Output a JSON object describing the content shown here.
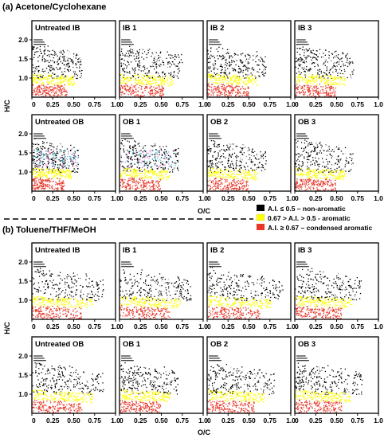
{
  "sections": [
    {
      "title": "(a) Acetone/Cyclohexane"
    },
    {
      "title": "(b) Toluene/THF/MeOH"
    }
  ],
  "axes": {
    "xlabel": "O/C",
    "ylabel": "H/C",
    "xticks": [
      "0",
      "0.25",
      "0.50",
      "0.75",
      "1.0"
    ],
    "yticks": [
      "1.0",
      "1.5",
      "2.0"
    ],
    "yticks_full": [
      "0.5",
      "1.0",
      "1.5",
      "2.0",
      "2.5"
    ]
  },
  "legend": [
    {
      "label": "A.I. ≤ 0.5 – non-aromatic",
      "color": "#000000"
    },
    {
      "label": "0.67 > A.I. > 0.5 - aromatic",
      "color": "#ffff00"
    },
    {
      "label": "A.I. ≥ 0.67 – condensed aromatic",
      "color": "#e8372a"
    }
  ],
  "chart_data": {
    "type": "scatter",
    "description_free": true,
    "x_range": [
      0,
      1.0
    ],
    "y_range": [
      0.5,
      2.5
    ],
    "series_classes": [
      {
        "name": "A.I. ≤ 0.5 – non-aromatic",
        "color": "#000000"
      },
      {
        "name": "0.67 > A.I. > 0.5 - aromatic",
        "color": "#ffff00"
      },
      {
        "name": "A.I. ≥ 0.67 – condensed aromatic",
        "color": "#e8372a"
      }
    ],
    "panels": [
      {
        "title": "Untreated IB",
        "section": 0,
        "spread": 0.6,
        "cyan": false,
        "pink": false
      },
      {
        "title": "IB 1",
        "section": 0,
        "spread": 0.75,
        "cyan": false,
        "pink": false
      },
      {
        "title": "IB 2",
        "section": 0,
        "spread": 0.7,
        "cyan": false,
        "pink": false
      },
      {
        "title": "IB 3",
        "section": 0,
        "spread": 0.7,
        "cyan": false,
        "pink": false
      },
      {
        "title": "Untreated OB",
        "section": 0,
        "spread": 0.55,
        "cyan": true,
        "pink": true
      },
      {
        "title": "OB 1",
        "section": 0,
        "spread": 0.7,
        "cyan": true,
        "pink": true
      },
      {
        "title": "OB 2",
        "section": 0,
        "spread": 0.7,
        "cyan": false,
        "pink": false
      },
      {
        "title": "OB 3",
        "section": 0,
        "spread": 0.7,
        "cyan": false,
        "pink": false
      },
      {
        "title": "Untreated IB",
        "section": 1,
        "spread": 0.85,
        "cyan": false,
        "pink": false
      },
      {
        "title": "IB 1",
        "section": 1,
        "spread": 0.85,
        "cyan": false,
        "pink": false
      },
      {
        "title": "IB 2",
        "section": 1,
        "spread": 0.9,
        "cyan": false,
        "pink": false
      },
      {
        "title": "IB 3",
        "section": 1,
        "spread": 0.8,
        "cyan": false,
        "pink": false
      },
      {
        "title": "Untreated OB",
        "section": 1,
        "spread": 0.85,
        "cyan": false,
        "pink": false
      },
      {
        "title": "OB 1",
        "section": 1,
        "spread": 0.7,
        "cyan": false,
        "pink": false
      },
      {
        "title": "OB 2",
        "section": 1,
        "spread": 0.8,
        "cyan": false,
        "pink": false
      },
      {
        "title": "OB 3",
        "section": 1,
        "spread": 0.8,
        "cyan": false,
        "pink": false
      }
    ]
  }
}
